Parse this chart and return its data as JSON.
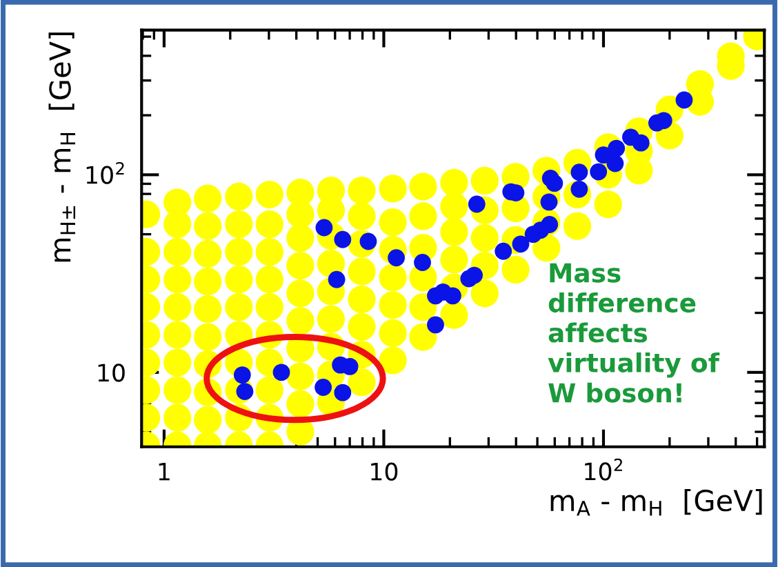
{
  "chart_data": {
    "type": "scatter",
    "xlabel": "m$_{A}$ - m$_{H}$  [GeV]",
    "ylabel": "m$_{H±}$ - m$_{H}$  [GeV]",
    "log": "xy",
    "xlim": [
      0.79,
      540
    ],
    "ylim": [
      4.2,
      540
    ],
    "xticks": [
      1,
      10,
      {
        "value": 100,
        "label": "10$^{2}$"
      }
    ],
    "yticks": [
      10,
      {
        "value": 100,
        "label": "10$^{2}$"
      }
    ],
    "grid": false,
    "legend": false,
    "marker": "circle",
    "annotations": [
      "Mass\ndifference\naffects\nvirtuality of\nW boson!"
    ],
    "series": [
      {
        "color": "#ffff00",
        "x": [
          0.83,
          0.83,
          0.83,
          0.83,
          0.83,
          0.83,
          0.83,
          0.83,
          0.83,
          1.15,
          1.15,
          1.15,
          1.15,
          1.15,
          1.15,
          1.15,
          1.15,
          1.15,
          1.15,
          1.58,
          1.58,
          1.58,
          1.58,
          1.58,
          1.58,
          1.58,
          1.58,
          1.58,
          1.58,
          2.19,
          2.19,
          2.19,
          2.19,
          2.19,
          2.19,
          2.19,
          2.19,
          2.19,
          2.19,
          3.02,
          3.02,
          3.02,
          3.02,
          3.02,
          3.02,
          3.02,
          3.02,
          3.02,
          3.02,
          4.17,
          4.17,
          4.17,
          4.17,
          4.17,
          4.17,
          4.17,
          4.17,
          4.17,
          4.17,
          5.75,
          5.75,
          5.75,
          5.75,
          5.75,
          5.75,
          5.75,
          5.75,
          5.75,
          7.94,
          7.94,
          7.94,
          7.94,
          7.94,
          7.94,
          7.94,
          7.94,
          11,
          11,
          11,
          11,
          11,
          11,
          11,
          15.1,
          15.1,
          15.1,
          15.1,
          15.1,
          15.1,
          20.9,
          20.9,
          20.9,
          20.9,
          20.9,
          20.9,
          28.8,
          28.8,
          28.8,
          28.8,
          28.8,
          39.8,
          39.8,
          39.8,
          39.8,
          55,
          55,
          55,
          55,
          76,
          76,
          76,
          105,
          105,
          105,
          145,
          145,
          145,
          200,
          200,
          275,
          275,
          380,
          380,
          500
        ],
        "values": [
          4.27,
          5.89,
          8.13,
          11.2,
          15.5,
          21.4,
          29.5,
          40.7,
          63.1,
          4.27,
          5.89,
          8.13,
          11.2,
          15.5,
          21.4,
          29.5,
          40.7,
          56.2,
          72.4,
          4.27,
          5.75,
          7.94,
          11.0,
          15.1,
          20.9,
          28.8,
          39.8,
          55.0,
          75.9,
          4.27,
          5.89,
          8.13,
          11.2,
          15.5,
          21.4,
          29.5,
          40.7,
          56.2,
          77.6,
          4.27,
          5.89,
          8.13,
          11.2,
          15.5,
          21.4,
          29.5,
          40.7,
          56.2,
          79.4,
          5.01,
          6.92,
          9.55,
          13.2,
          18.2,
          25.1,
          34.7,
          47.9,
          63.1,
          81.3,
          7.08,
          9.77,
          13.5,
          18.6,
          25.7,
          35.5,
          49.0,
          66.1,
          83.2,
          8.91,
          12.3,
          17.0,
          23.4,
          32.4,
          44.7,
          61.7,
          83.2,
          11.5,
          15.8,
          21.9,
          30.2,
          41.7,
          57.5,
          85.1,
          15.1,
          21.4,
          30.2,
          42.7,
          61.7,
          87.1,
          19.5,
          26.9,
          37.2,
          51.3,
          69.2,
          91.2,
          25.1,
          34.7,
          47.9,
          66.1,
          93.3,
          33.1,
          46.8,
          67.6,
          97.7,
          42.7,
          57.5,
          77.6,
          105,
          55.0,
          79.4,
          115,
          70.8,
          100,
          138,
          105,
          132,
          166,
          158,
          214,
          234,
          288,
          355,
          398,
          501
        ]
      },
      {
        "color": "#0a14e6",
        "x": [
          2.27,
          2.33,
          3.42,
          5.3,
          6.5,
          6.35,
          7.0,
          5.35,
          6.5,
          8.5,
          6.1,
          11.4,
          15.0,
          17.2,
          18.6,
          20.6,
          17.2,
          24.4,
          25.8,
          26.5,
          35,
          37.9,
          39.9,
          42,
          47.9,
          51.7,
          56.8,
          56.5,
          57.4,
          59.8,
          77.6,
          77.6,
          94.9,
          100,
          113,
          114.5,
          133,
          148,
          175,
          188,
          233
        ],
        "values": [
          9.7,
          8.0,
          10,
          8.4,
          7.9,
          10.9,
          10.7,
          54,
          47,
          46,
          29.5,
          38,
          36,
          24.4,
          25.5,
          24.4,
          17.4,
          29.8,
          31,
          71,
          41,
          82,
          81,
          44.6,
          50,
          52.4,
          56,
          72.8,
          96,
          90.6,
          84.5,
          103,
          103.5,
          126,
          114,
          136,
          155,
          145,
          183,
          188,
          239
        ]
      }
    ]
  }
}
